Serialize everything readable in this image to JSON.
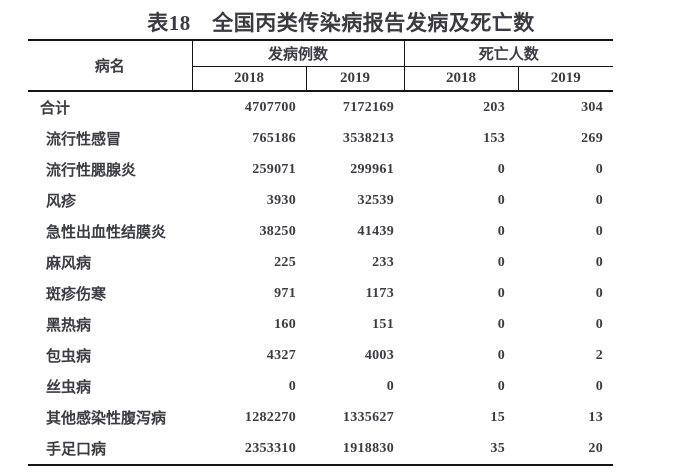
{
  "title": "表18　全国丙类传染病报告发病及死亡数",
  "colors": {
    "text": "#3b3b44",
    "title_text": "#3a3a40",
    "border": "#151515",
    "background": "#ffffff"
  },
  "table": {
    "disease_column_header": "病名",
    "cases_group_header": "发病例数",
    "deaths_group_header": "死亡人数",
    "year_labels": [
      "2018",
      "2019",
      "2018",
      "2019"
    ],
    "rows": [
      {
        "name": "合计",
        "cases_2018": "4707700",
        "cases_2019": "7172169",
        "deaths_2018": "203",
        "deaths_2019": "304",
        "is_total": true
      },
      {
        "name": "流行性感冒",
        "cases_2018": "765186",
        "cases_2019": "3538213",
        "deaths_2018": "153",
        "deaths_2019": "269",
        "is_total": false
      },
      {
        "name": "流行性腮腺炎",
        "cases_2018": "259071",
        "cases_2019": "299961",
        "deaths_2018": "0",
        "deaths_2019": "0",
        "is_total": false
      },
      {
        "name": "风疹",
        "cases_2018": "3930",
        "cases_2019": "32539",
        "deaths_2018": "0",
        "deaths_2019": "0",
        "is_total": false
      },
      {
        "name": "急性出血性结膜炎",
        "cases_2018": "38250",
        "cases_2019": "41439",
        "deaths_2018": "0",
        "deaths_2019": "0",
        "is_total": false
      },
      {
        "name": "麻风病",
        "cases_2018": "225",
        "cases_2019": "233",
        "deaths_2018": "0",
        "deaths_2019": "0",
        "is_total": false
      },
      {
        "name": "斑疹伤寒",
        "cases_2018": "971",
        "cases_2019": "1173",
        "deaths_2018": "0",
        "deaths_2019": "0",
        "is_total": false
      },
      {
        "name": "黑热病",
        "cases_2018": "160",
        "cases_2019": "151",
        "deaths_2018": "0",
        "deaths_2019": "0",
        "is_total": false
      },
      {
        "name": "包虫病",
        "cases_2018": "4327",
        "cases_2019": "4003",
        "deaths_2018": "0",
        "deaths_2019": "2",
        "is_total": false
      },
      {
        "name": "丝虫病",
        "cases_2018": "0",
        "cases_2019": "0",
        "deaths_2018": "0",
        "deaths_2019": "0",
        "is_total": false
      },
      {
        "name": "其他感染性腹泻病",
        "cases_2018": "1282270",
        "cases_2019": "1335627",
        "deaths_2018": "15",
        "deaths_2019": "13",
        "is_total": false
      },
      {
        "name": "手足口病",
        "cases_2018": "2353310",
        "cases_2019": "1918830",
        "deaths_2018": "35",
        "deaths_2019": "20",
        "is_total": false
      }
    ]
  }
}
